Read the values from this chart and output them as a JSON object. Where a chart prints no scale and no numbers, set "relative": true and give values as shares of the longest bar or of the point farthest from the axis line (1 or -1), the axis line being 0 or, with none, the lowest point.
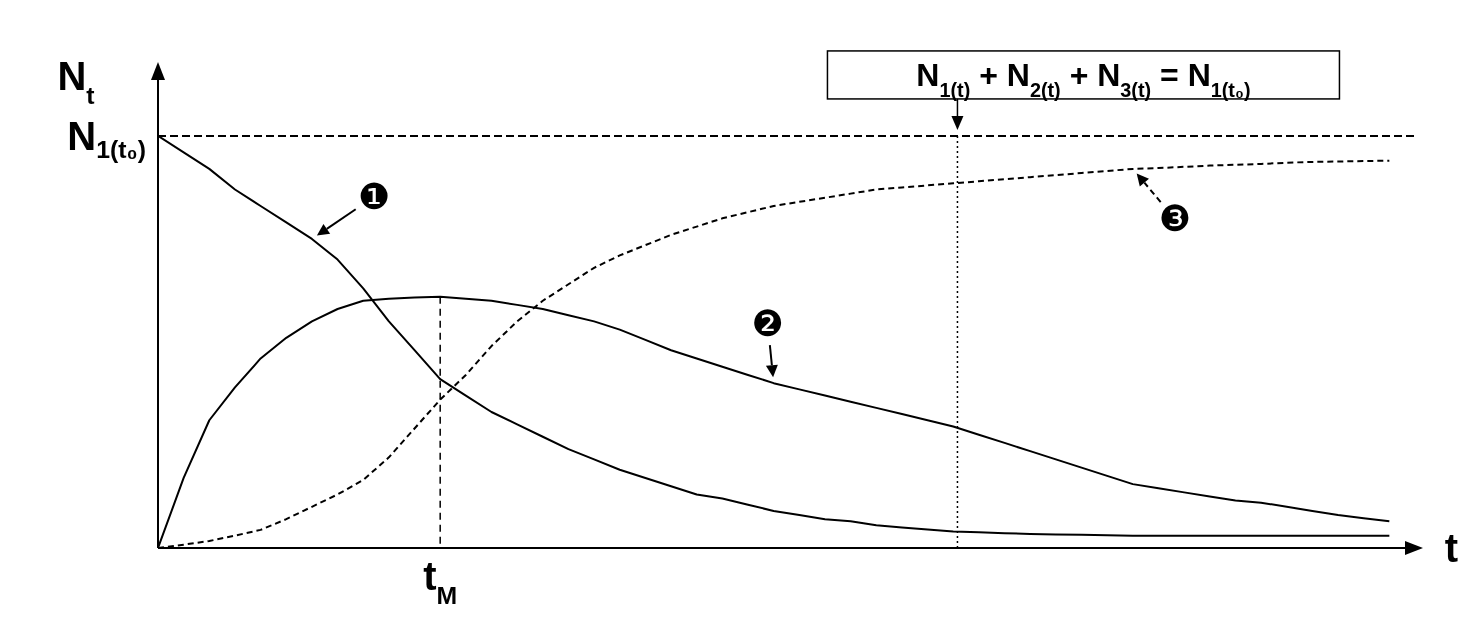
{
  "chart_data": {
    "type": "line",
    "relative": true,
    "xlabel": "t",
    "ylabel": "N$_{t}$",
    "marker": "none",
    "categories": [
      null,
      null,
      null,
      null,
      null,
      null,
      null,
      null,
      null,
      null,
      null,
      null,
      null,
      null,
      null,
      null,
      null,
      null,
      null,
      null,
      null,
      null,
      null,
      null,
      null,
      null,
      null,
      null,
      null,
      null,
      null,
      null,
      null,
      null,
      null,
      null,
      null,
      null,
      null,
      null,
      null,
      null,
      null,
      null,
      null,
      null,
      null,
      null,
      null
    ],
    "series": [
      {
        "name": "❶",
        "color": "#000000",
        "line_style": "solid",
        "values": [
          1.0,
          0.96,
          0.92,
          0.87,
          0.83,
          0.79,
          0.75,
          0.7,
          0.63,
          0.55,
          0.48,
          0.41,
          0.37,
          0.33,
          0.3,
          0.27,
          0.24,
          0.215,
          0.19,
          0.17,
          0.15,
          0.13,
          0.12,
          0.105,
          0.09,
          0.08,
          0.07,
          0.065,
          0.055,
          0.05,
          0.045,
          0.04,
          0.038,
          0.036,
          0.034,
          0.033,
          0.032,
          0.031,
          0.03,
          0.03,
          0.03,
          0.03,
          0.03,
          0.03,
          0.03,
          0.03,
          0.03,
          0.03,
          0.03
        ]
      },
      {
        "name": "❷",
        "color": "#000000",
        "line_style": "solid",
        "values": [
          0,
          0.17,
          0.31,
          0.39,
          0.46,
          0.51,
          0.55,
          0.58,
          0.6,
          0.605,
          0.608,
          0.61,
          0.605,
          0.6,
          0.59,
          0.58,
          0.565,
          0.55,
          0.53,
          0.505,
          0.48,
          0.46,
          0.44,
          0.42,
          0.4,
          0.385,
          0.37,
          0.355,
          0.34,
          0.325,
          0.31,
          0.295,
          0.275,
          0.255,
          0.235,
          0.215,
          0.195,
          0.175,
          0.155,
          0.145,
          0.135,
          0.125,
          0.115,
          0.11,
          0.1,
          0.09,
          0.08,
          0.072,
          0.065
        ]
      },
      {
        "name": "❸",
        "color": "#000000",
        "line_style": "dashed",
        "values": [
          0,
          0.008,
          0.017,
          0.03,
          0.044,
          0.07,
          0.1,
          0.13,
          0.165,
          0.22,
          0.29,
          0.36,
          0.42,
          0.49,
          0.55,
          0.6,
          0.64,
          0.68,
          0.71,
          0.735,
          0.76,
          0.78,
          0.8,
          0.815,
          0.83,
          0.84,
          0.85,
          0.86,
          0.87,
          0.875,
          0.88,
          0.885,
          0.89,
          0.895,
          0.9,
          0.905,
          0.91,
          0.915,
          0.92,
          0.922,
          0.925,
          0.928,
          0.93,
          0.932,
          0.935,
          0.937,
          0.938,
          0.939,
          0.94
        ]
      }
    ],
    "ref_lines": [
      {
        "axis": "y",
        "value": 1,
        "label": "N$_{1(t₀)}$",
        "line_style": "dashed"
      }
    ],
    "annotations": [
      "N$_{1(t)}$ + N$_{2(t)}$ + N$_{3(t)}$ = N$_{1(t₀)}$",
      {
        "text": "t$_{M}$",
        "y": 0.61
      }
    ]
  }
}
